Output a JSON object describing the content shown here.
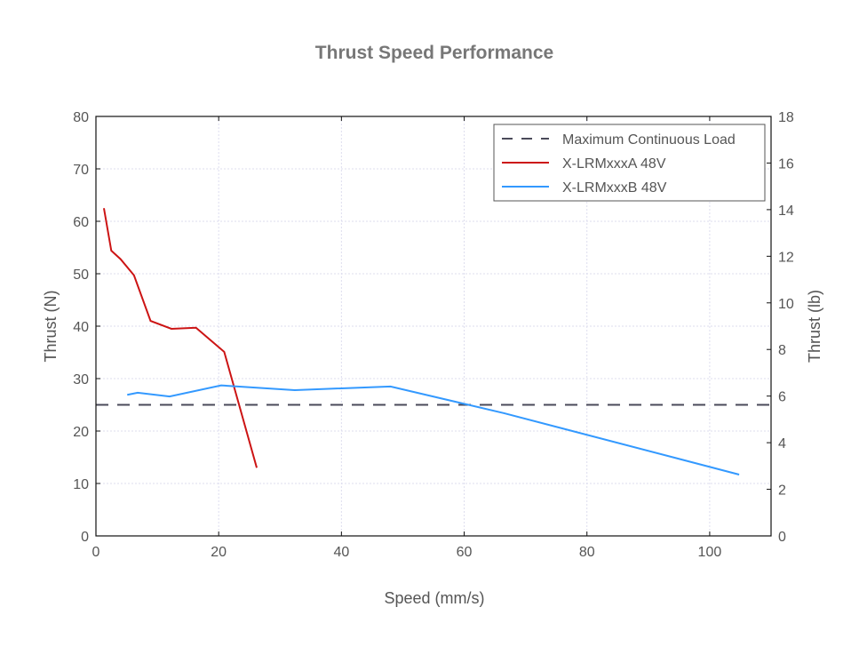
{
  "chart_data": {
    "type": "line",
    "title": "Thrust Speed Performance",
    "xlabel": "Speed (mm/s)",
    "ylabel": "Thrust (N)",
    "ylabel_right": "Thrust (lb)",
    "xlim": [
      0,
      110
    ],
    "ylim": [
      0,
      80
    ],
    "ylim_right": [
      0,
      18
    ],
    "xticks": [
      0,
      20,
      40,
      60,
      80,
      100
    ],
    "yticks": [
      0,
      10,
      20,
      30,
      40,
      50,
      60,
      70,
      80
    ],
    "yticks_right": [
      0,
      2,
      4,
      6,
      8,
      10,
      12,
      14,
      16,
      18
    ],
    "grid": true,
    "legend_position": "top-right",
    "series": [
      {
        "name": "Maximum Continuous Load",
        "style": "dashed",
        "color": "#4a4a5a",
        "x": [
          0,
          110
        ],
        "y": [
          25,
          25
        ]
      },
      {
        "name": "X-LRMxxxA 48V",
        "style": "solid",
        "color": "#cc1414",
        "x": [
          1.3,
          2.5,
          4.0,
          6.2,
          8.9,
          12.3,
          16.3,
          20.9,
          26.2
        ],
        "y": [
          62.5,
          54.4,
          52.8,
          49.7,
          41.0,
          39.5,
          39.7,
          35.1,
          13.0
        ]
      },
      {
        "name": "X-LRMxxxB 48V",
        "style": "solid",
        "color": "#3399ff",
        "x": [
          5.1,
          6.8,
          12.0,
          20.4,
          32.4,
          48.0,
          66.5,
          104.8
        ],
        "y": [
          26.9,
          27.3,
          26.6,
          28.7,
          27.8,
          28.5,
          23.4,
          11.7
        ]
      }
    ]
  }
}
